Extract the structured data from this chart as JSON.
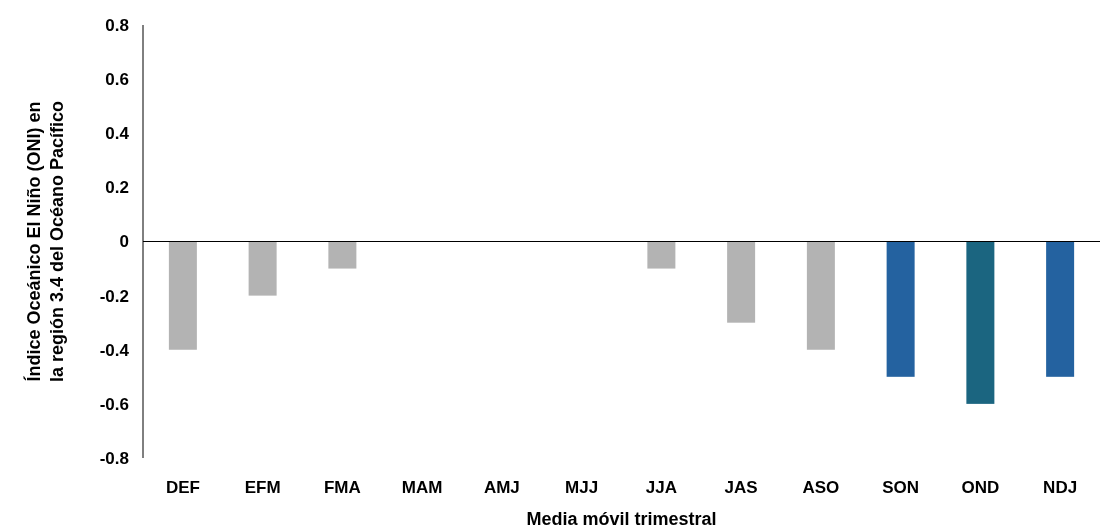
{
  "chart_data": {
    "type": "bar",
    "xlabel": "Media móvil trimestral",
    "ylabel": "Índice Oceánico El Niño (ONI) en\nla región 3.4 del Océano Pacífico",
    "categories": [
      "DEF",
      "EFM",
      "FMA",
      "MAM",
      "AMJ",
      "MJJ",
      "JJA",
      "JAS",
      "ASO",
      "SON",
      "OND",
      "NDJ"
    ],
    "values": [
      -0.4,
      -0.2,
      -0.1,
      0,
      0,
      0,
      -0.1,
      -0.3,
      -0.4,
      -0.5,
      -0.6,
      -0.5
    ],
    "colors": [
      "#b3b3b3",
      "#b3b3b3",
      "#b3b3b3",
      "#b3b3b3",
      "#b3b3b3",
      "#b3b3b3",
      "#b3b3b3",
      "#b3b3b3",
      "#b3b3b3",
      "#2462a0",
      "#1b6580",
      "#2462a0"
    ],
    "ylim": [
      -0.8,
      0.8
    ],
    "yticks": [
      -0.8,
      -0.6,
      -0.4,
      -0.2,
      0,
      0.2,
      0.4,
      0.6,
      0.8
    ]
  }
}
